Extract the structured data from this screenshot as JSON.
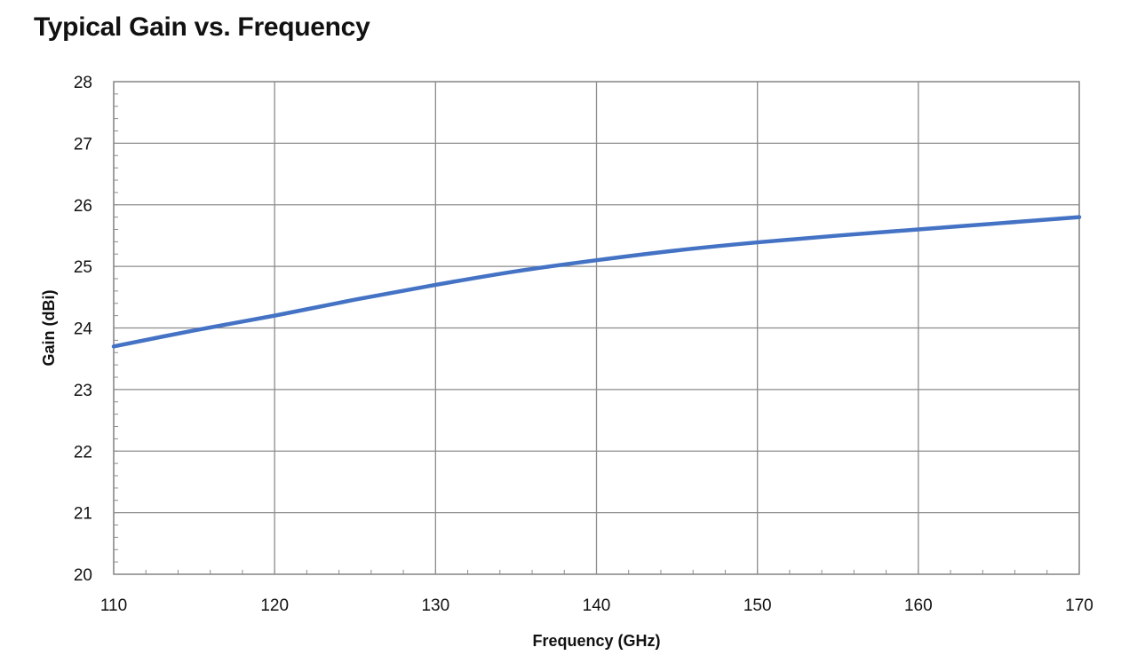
{
  "chart_data": {
    "type": "line",
    "title": "Typical Gain vs. Frequency",
    "xlabel": "Frequency (GHz)",
    "ylabel": "Gain (dBi)",
    "xlim": [
      110,
      170
    ],
    "ylim": [
      20,
      28
    ],
    "xticks": [
      110,
      120,
      130,
      140,
      150,
      160,
      170
    ],
    "yticks": [
      20,
      21,
      22,
      23,
      24,
      25,
      26,
      27,
      28
    ],
    "grid": true,
    "legend": "none",
    "series": [
      {
        "color": "#4472C4",
        "x": [
          110,
          115,
          120,
          125,
          130,
          135,
          140,
          145,
          150,
          155,
          160,
          165,
          170
        ],
        "y": [
          23.7,
          23.96,
          24.2,
          24.46,
          24.7,
          24.92,
          25.1,
          25.26,
          25.39,
          25.5,
          25.6,
          25.7,
          25.8
        ]
      }
    ]
  }
}
